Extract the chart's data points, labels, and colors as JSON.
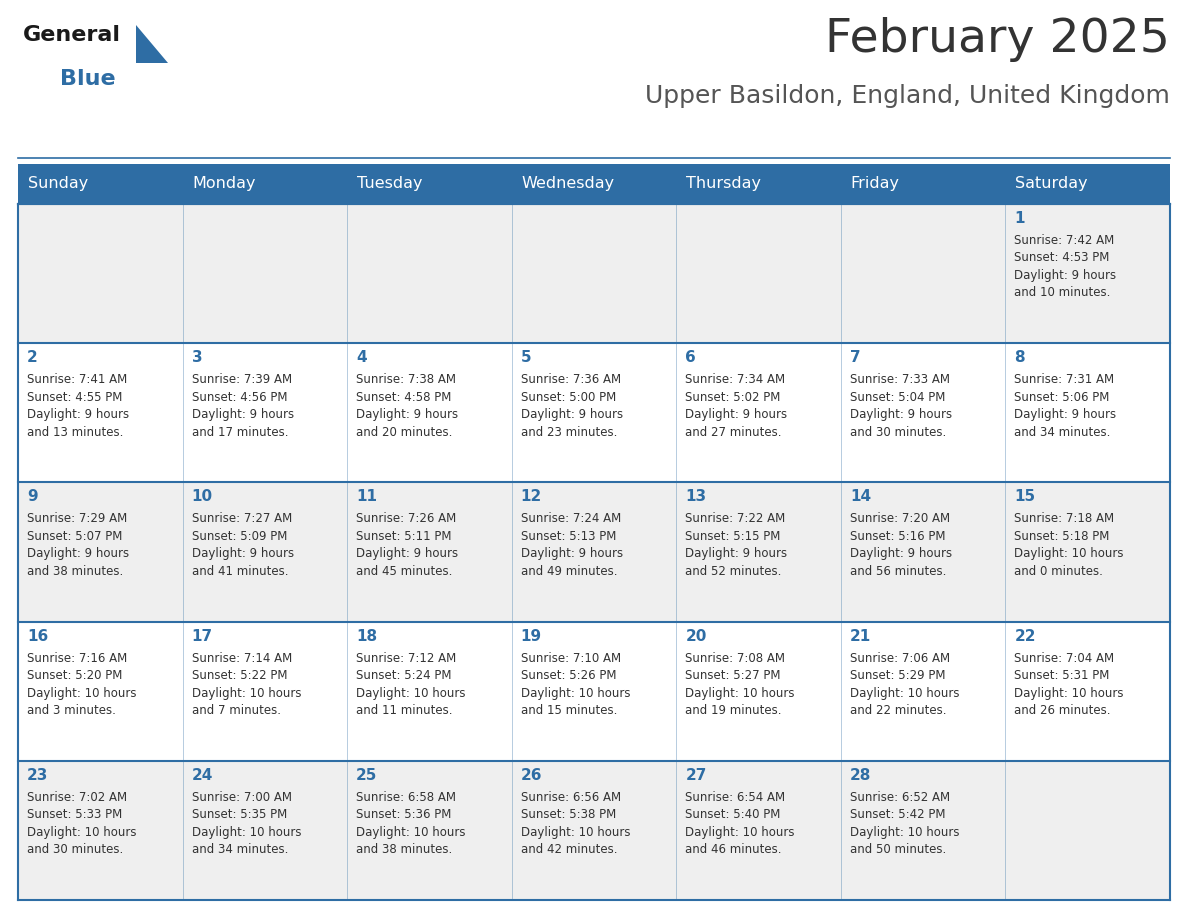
{
  "title": "February 2025",
  "subtitle": "Upper Basildon, England, United Kingdom",
  "days_of_week": [
    "Sunday",
    "Monday",
    "Tuesday",
    "Wednesday",
    "Thursday",
    "Friday",
    "Saturday"
  ],
  "header_bg": "#2E6DA4",
  "header_text": "#FFFFFF",
  "cell_bg_light": "#EFEFEF",
  "cell_bg_white": "#FFFFFF",
  "border_color": "#2E6DA4",
  "title_color": "#333333",
  "subtitle_color": "#555555",
  "day_number_color": "#2E6DA4",
  "cell_text_color": "#333333",
  "logo_general_color": "#1a1a1a",
  "logo_blue_color": "#2E6DA4",
  "calendar_data": [
    [
      null,
      null,
      null,
      null,
      null,
      null,
      {
        "day": 1,
        "sunrise": "7:42 AM",
        "sunset": "4:53 PM",
        "daylight": "9 hours",
        "daylight2": "and 10 minutes."
      }
    ],
    [
      {
        "day": 2,
        "sunrise": "7:41 AM",
        "sunset": "4:55 PM",
        "daylight": "9 hours",
        "daylight2": "and 13 minutes."
      },
      {
        "day": 3,
        "sunrise": "7:39 AM",
        "sunset": "4:56 PM",
        "daylight": "9 hours",
        "daylight2": "and 17 minutes."
      },
      {
        "day": 4,
        "sunrise": "7:38 AM",
        "sunset": "4:58 PM",
        "daylight": "9 hours",
        "daylight2": "and 20 minutes."
      },
      {
        "day": 5,
        "sunrise": "7:36 AM",
        "sunset": "5:00 PM",
        "daylight": "9 hours",
        "daylight2": "and 23 minutes."
      },
      {
        "day": 6,
        "sunrise": "7:34 AM",
        "sunset": "5:02 PM",
        "daylight": "9 hours",
        "daylight2": "and 27 minutes."
      },
      {
        "day": 7,
        "sunrise": "7:33 AM",
        "sunset": "5:04 PM",
        "daylight": "9 hours",
        "daylight2": "and 30 minutes."
      },
      {
        "day": 8,
        "sunrise": "7:31 AM",
        "sunset": "5:06 PM",
        "daylight": "9 hours",
        "daylight2": "and 34 minutes."
      }
    ],
    [
      {
        "day": 9,
        "sunrise": "7:29 AM",
        "sunset": "5:07 PM",
        "daylight": "9 hours",
        "daylight2": "and 38 minutes."
      },
      {
        "day": 10,
        "sunrise": "7:27 AM",
        "sunset": "5:09 PM",
        "daylight": "9 hours",
        "daylight2": "and 41 minutes."
      },
      {
        "day": 11,
        "sunrise": "7:26 AM",
        "sunset": "5:11 PM",
        "daylight": "9 hours",
        "daylight2": "and 45 minutes."
      },
      {
        "day": 12,
        "sunrise": "7:24 AM",
        "sunset": "5:13 PM",
        "daylight": "9 hours",
        "daylight2": "and 49 minutes."
      },
      {
        "day": 13,
        "sunrise": "7:22 AM",
        "sunset": "5:15 PM",
        "daylight": "9 hours",
        "daylight2": "and 52 minutes."
      },
      {
        "day": 14,
        "sunrise": "7:20 AM",
        "sunset": "5:16 PM",
        "daylight": "9 hours",
        "daylight2": "and 56 minutes."
      },
      {
        "day": 15,
        "sunrise": "7:18 AM",
        "sunset": "5:18 PM",
        "daylight": "10 hours",
        "daylight2": "and 0 minutes."
      }
    ],
    [
      {
        "day": 16,
        "sunrise": "7:16 AM",
        "sunset": "5:20 PM",
        "daylight": "10 hours",
        "daylight2": "and 3 minutes."
      },
      {
        "day": 17,
        "sunrise": "7:14 AM",
        "sunset": "5:22 PM",
        "daylight": "10 hours",
        "daylight2": "and 7 minutes."
      },
      {
        "day": 18,
        "sunrise": "7:12 AM",
        "sunset": "5:24 PM",
        "daylight": "10 hours",
        "daylight2": "and 11 minutes."
      },
      {
        "day": 19,
        "sunrise": "7:10 AM",
        "sunset": "5:26 PM",
        "daylight": "10 hours",
        "daylight2": "and 15 minutes."
      },
      {
        "day": 20,
        "sunrise": "7:08 AM",
        "sunset": "5:27 PM",
        "daylight": "10 hours",
        "daylight2": "and 19 minutes."
      },
      {
        "day": 21,
        "sunrise": "7:06 AM",
        "sunset": "5:29 PM",
        "daylight": "10 hours",
        "daylight2": "and 22 minutes."
      },
      {
        "day": 22,
        "sunrise": "7:04 AM",
        "sunset": "5:31 PM",
        "daylight": "10 hours",
        "daylight2": "and 26 minutes."
      }
    ],
    [
      {
        "day": 23,
        "sunrise": "7:02 AM",
        "sunset": "5:33 PM",
        "daylight": "10 hours",
        "daylight2": "and 30 minutes."
      },
      {
        "day": 24,
        "sunrise": "7:00 AM",
        "sunset": "5:35 PM",
        "daylight": "10 hours",
        "daylight2": "and 34 minutes."
      },
      {
        "day": 25,
        "sunrise": "6:58 AM",
        "sunset": "5:36 PM",
        "daylight": "10 hours",
        "daylight2": "and 38 minutes."
      },
      {
        "day": 26,
        "sunrise": "6:56 AM",
        "sunset": "5:38 PM",
        "daylight": "10 hours",
        "daylight2": "and 42 minutes."
      },
      {
        "day": 27,
        "sunrise": "6:54 AM",
        "sunset": "5:40 PM",
        "daylight": "10 hours",
        "daylight2": "and 46 minutes."
      },
      {
        "day": 28,
        "sunrise": "6:52 AM",
        "sunset": "5:42 PM",
        "daylight": "10 hours",
        "daylight2": "and 50 minutes."
      },
      null
    ]
  ]
}
